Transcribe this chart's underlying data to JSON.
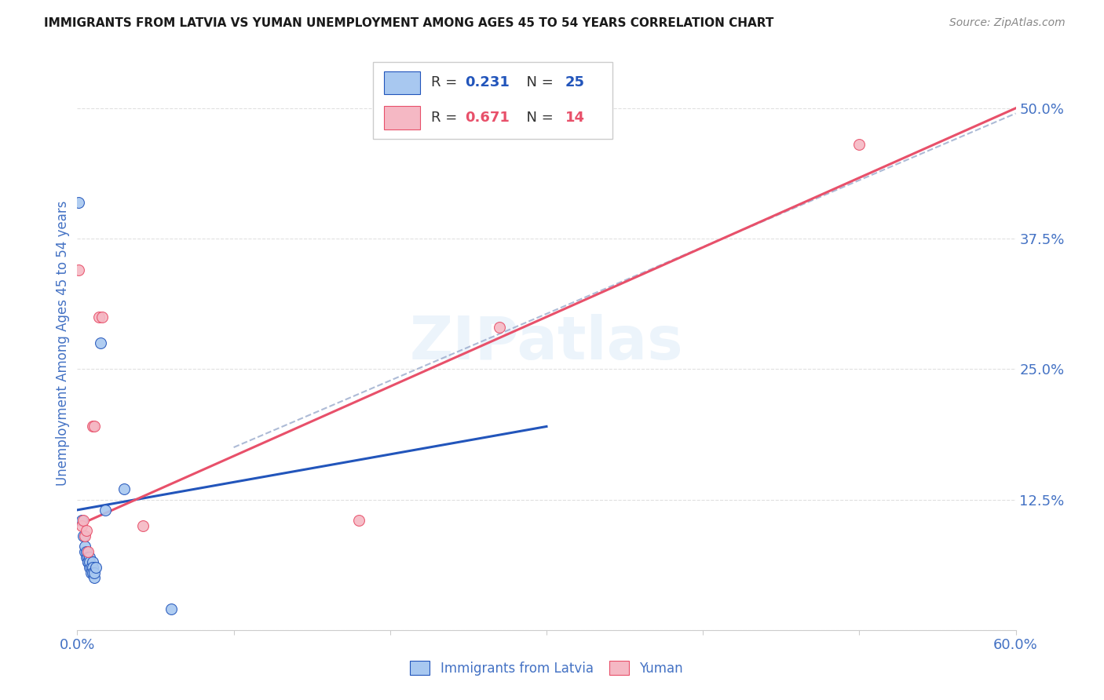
{
  "title": "IMMIGRANTS FROM LATVIA VS YUMAN UNEMPLOYMENT AMONG AGES 45 TO 54 YEARS CORRELATION CHART",
  "source": "Source: ZipAtlas.com",
  "ylabel": "Unemployment Among Ages 45 to 54 years",
  "legend_blue_r": "0.231",
  "legend_blue_n": "25",
  "legend_pink_r": "0.671",
  "legend_pink_n": "14",
  "xlim": [
    0.0,
    0.6
  ],
  "ylim": [
    0.0,
    0.55
  ],
  "xticks": [
    0.0,
    0.1,
    0.2,
    0.3,
    0.4,
    0.5,
    0.6
  ],
  "xtick_labels": [
    "0.0%",
    "",
    "",
    "",
    "",
    "",
    "60.0%"
  ],
  "yticks": [
    0.0,
    0.125,
    0.25,
    0.375,
    0.5
  ],
  "ytick_labels": [
    "",
    "12.5%",
    "25.0%",
    "37.5%",
    "50.0%"
  ],
  "blue_scatter": [
    [
      0.001,
      0.41
    ],
    [
      0.003,
      0.105
    ],
    [
      0.004,
      0.09
    ],
    [
      0.005,
      0.075
    ],
    [
      0.005,
      0.08
    ],
    [
      0.006,
      0.07
    ],
    [
      0.006,
      0.075
    ],
    [
      0.007,
      0.065
    ],
    [
      0.007,
      0.07
    ],
    [
      0.007,
      0.065
    ],
    [
      0.008,
      0.07
    ],
    [
      0.008,
      0.06
    ],
    [
      0.008,
      0.065
    ],
    [
      0.009,
      0.06
    ],
    [
      0.009,
      0.055
    ],
    [
      0.01,
      0.065
    ],
    [
      0.01,
      0.06
    ],
    [
      0.01,
      0.055
    ],
    [
      0.011,
      0.05
    ],
    [
      0.011,
      0.055
    ],
    [
      0.012,
      0.06
    ],
    [
      0.015,
      0.275
    ],
    [
      0.018,
      0.115
    ],
    [
      0.03,
      0.135
    ],
    [
      0.06,
      0.02
    ]
  ],
  "pink_scatter": [
    [
      0.001,
      0.345
    ],
    [
      0.003,
      0.1
    ],
    [
      0.004,
      0.105
    ],
    [
      0.005,
      0.09
    ],
    [
      0.006,
      0.095
    ],
    [
      0.007,
      0.075
    ],
    [
      0.01,
      0.195
    ],
    [
      0.011,
      0.195
    ],
    [
      0.014,
      0.3
    ],
    [
      0.016,
      0.3
    ],
    [
      0.042,
      0.1
    ],
    [
      0.18,
      0.105
    ],
    [
      0.27,
      0.29
    ],
    [
      0.5,
      0.465
    ]
  ],
  "blue_line_x": [
    0.0,
    0.3
  ],
  "blue_line_y": [
    0.115,
    0.195
  ],
  "pink_line_x": [
    0.0,
    0.6
  ],
  "pink_line_y": [
    0.1,
    0.5
  ],
  "dashed_line_x": [
    0.1,
    0.6
  ],
  "dashed_line_y": [
    0.175,
    0.495
  ],
  "watermark": "ZIPatlas",
  "title_color": "#1a1a1a",
  "source_color": "#888888",
  "axis_label_color": "#4472c4",
  "tick_label_color": "#4472c4",
  "scatter_blue_color": "#a8c8f0",
  "scatter_pink_color": "#f5b8c4",
  "line_blue_color": "#2255bb",
  "line_pink_color": "#e8506a",
  "line_dashed_color": "#99aaccaa",
  "grid_color": "#e0e0e0",
  "background_color": "#ffffff",
  "legend_box_blue_fill": "#a8c8f0",
  "legend_box_blue_edge": "#2255bb",
  "legend_box_pink_fill": "#f5b8c4",
  "legend_box_pink_edge": "#e8506a",
  "scatter_size": 100
}
